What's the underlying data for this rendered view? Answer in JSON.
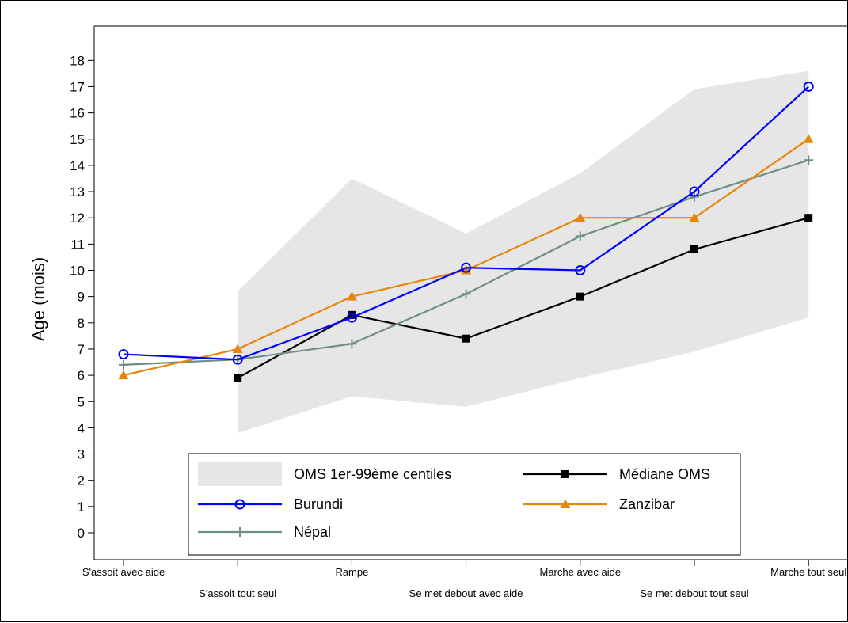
{
  "chart_data": {
    "type": "line",
    "title": "",
    "xlabel": "",
    "ylabel": "Age (mois)",
    "ylim": [
      0,
      18
    ],
    "yticks": [
      0,
      1,
      2,
      3,
      4,
      5,
      6,
      7,
      8,
      9,
      10,
      11,
      12,
      13,
      14,
      15,
      16,
      17,
      18
    ],
    "grid": false,
    "legend_position": "bottom",
    "categories": [
      "S'assoit avec aide",
      "S'assoit tout seul",
      "Rampe",
      "Se met debout avec aide",
      "Marche avec aide",
      "Se met debout tout seul",
      "Marche tout seul"
    ],
    "band": {
      "name": "OMS 1er-99ème centiles",
      "color": "#e6e6e6",
      "lower": [
        null,
        3.8,
        5.2,
        4.8,
        5.9,
        6.9,
        8.2
      ],
      "upper": [
        null,
        9.2,
        13.5,
        11.4,
        13.7,
        16.9,
        17.6
      ]
    },
    "series": [
      {
        "name": "Médiane OMS",
        "color": "#000000",
        "marker": "square",
        "values": [
          null,
          5.9,
          8.3,
          7.4,
          9.0,
          10.8,
          12.0
        ]
      },
      {
        "name": "Burundi",
        "color": "#0000ff",
        "marker": "circle",
        "values": [
          6.8,
          6.6,
          8.2,
          10.1,
          10.0,
          13.0,
          17.0
        ]
      },
      {
        "name": "Zanzibar",
        "color": "#e8850c",
        "marker": "triangle",
        "values": [
          6.0,
          7.0,
          9.0,
          10.0,
          12.0,
          12.0,
          15.0
        ]
      },
      {
        "name": "Népal",
        "color": "#6e8f83",
        "marker": "plus",
        "values": [
          6.4,
          6.6,
          7.2,
          9.1,
          11.3,
          12.8,
          14.2
        ]
      }
    ]
  }
}
